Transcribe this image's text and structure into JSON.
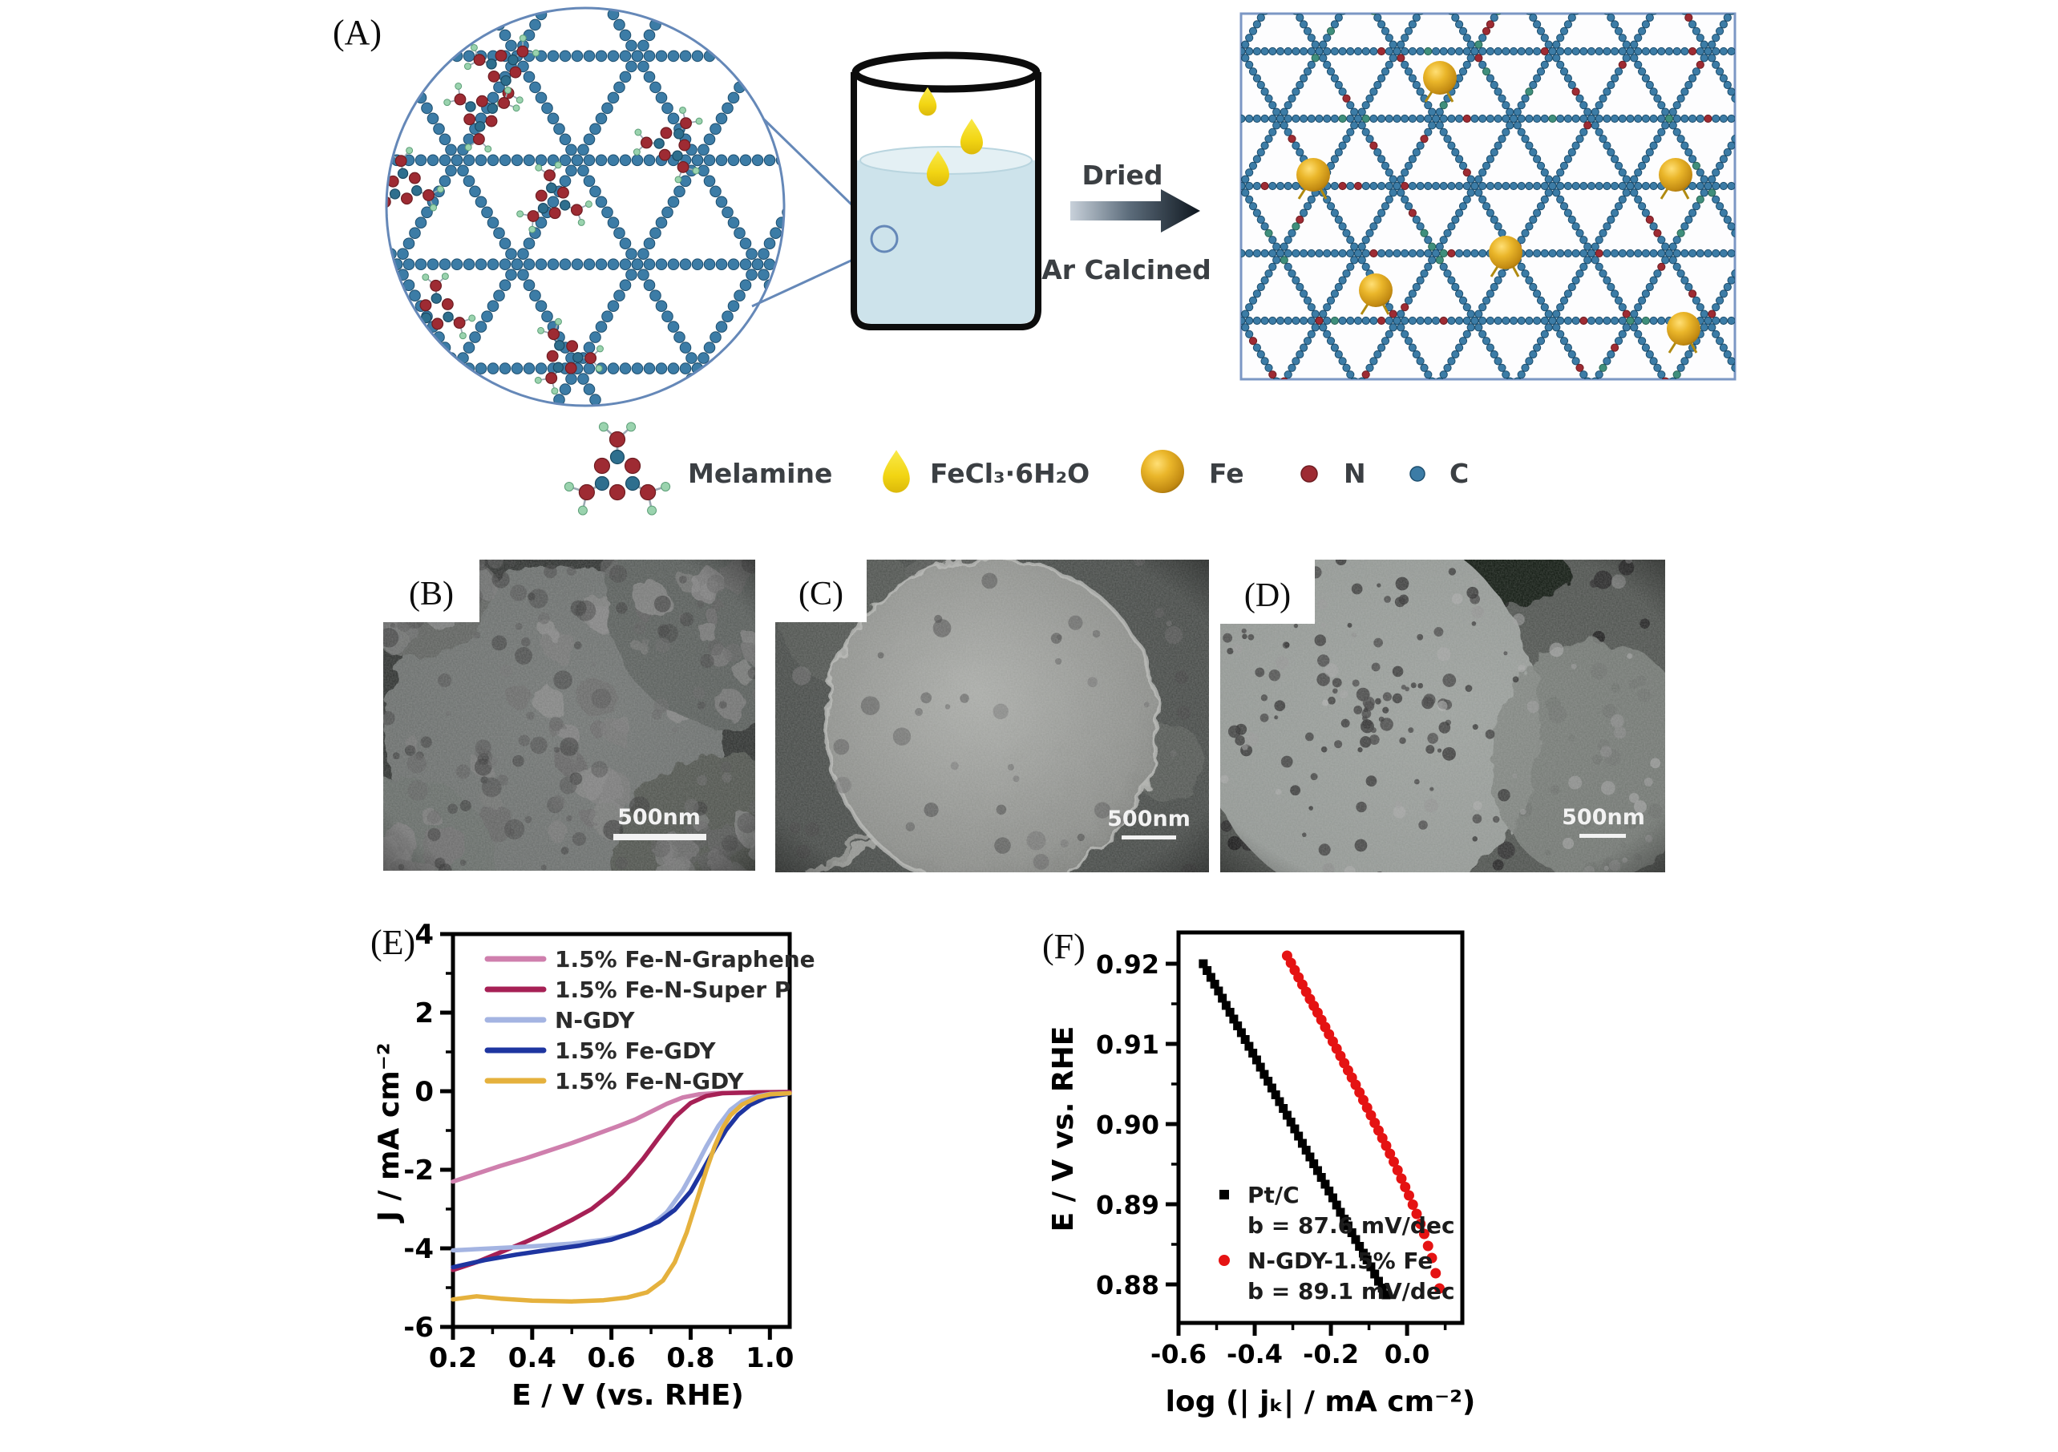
{
  "figure": {
    "panels": {
      "a": {
        "label": "(A)",
        "process": {
          "dried": "Dried",
          "ar_calcined": "Ar Calcined"
        },
        "legend": {
          "melamine": "Melamine",
          "fecl3": "FeCl₃·6H₂O",
          "fe": "Fe",
          "n": "N",
          "c": "C"
        },
        "colors": {
          "carbon": "#3c7ca6",
          "nitrogen": "#9e2b33",
          "hydrogen": "#9ad3ae",
          "iron_sphere": "#e0a51e",
          "droplet": "#f2d513",
          "liquid": "#cde3eb",
          "outline": "#6a8fbf"
        }
      },
      "b": {
        "label": "(B)",
        "scalebar": "500nm"
      },
      "c": {
        "label": "(C)",
        "scalebar": "500nm"
      },
      "d": {
        "label": "(D)",
        "scalebar": "500nm"
      },
      "e": {
        "label": "(E)"
      },
      "f": {
        "label": "(F)"
      }
    }
  },
  "chart_data": [
    {
      "id": "E",
      "type": "line",
      "xlabel": "E / V (vs. RHE)",
      "ylabel": "J / mA cm⁻²",
      "xlim": [
        0.2,
        1.05
      ],
      "ylim": [
        -6,
        4
      ],
      "xtick_vals": [
        0.2,
        0.4,
        0.6,
        0.8,
        1.0
      ],
      "xtick_labels": [
        "0.2",
        "0.4",
        "0.6",
        "0.8",
        "1.0"
      ],
      "xminor_vals": [
        0.3,
        0.5,
        0.7,
        0.9
      ],
      "ytick_vals": [
        4,
        2,
        0,
        -2,
        -4,
        -6
      ],
      "ytick_labels": [
        "4",
        "2",
        "0",
        "-2",
        "-4",
        "-6"
      ],
      "yminor_vals": [
        3,
        1,
        -1,
        -3,
        -5
      ],
      "legend_position": "top-left",
      "grid": false,
      "series": [
        {
          "name": "1.5% Fe-N-Graphene",
          "color": "#cf7fad",
          "points": [
            [
              0.2,
              -2.3
            ],
            [
              0.26,
              -2.1
            ],
            [
              0.32,
              -1.9
            ],
            [
              0.38,
              -1.72
            ],
            [
              0.44,
              -1.52
            ],
            [
              0.5,
              -1.32
            ],
            [
              0.56,
              -1.1
            ],
            [
              0.62,
              -0.88
            ],
            [
              0.66,
              -0.72
            ],
            [
              0.7,
              -0.52
            ],
            [
              0.74,
              -0.32
            ],
            [
              0.78,
              -0.16
            ],
            [
              0.82,
              -0.08
            ],
            [
              0.86,
              -0.05
            ],
            [
              0.92,
              -0.04
            ],
            [
              1.0,
              -0.03
            ],
            [
              1.05,
              -0.03
            ]
          ]
        },
        {
          "name": "1.5% Fe-N-Super P",
          "color": "#a62055",
          "points": [
            [
              0.2,
              -4.55
            ],
            [
              0.26,
              -4.35
            ],
            [
              0.32,
              -4.1
            ],
            [
              0.38,
              -3.85
            ],
            [
              0.44,
              -3.58
            ],
            [
              0.5,
              -3.28
            ],
            [
              0.55,
              -3.0
            ],
            [
              0.6,
              -2.6
            ],
            [
              0.64,
              -2.2
            ],
            [
              0.68,
              -1.72
            ],
            [
              0.72,
              -1.18
            ],
            [
              0.76,
              -0.66
            ],
            [
              0.8,
              -0.3
            ],
            [
              0.84,
              -0.12
            ],
            [
              0.88,
              -0.05
            ],
            [
              0.95,
              -0.03
            ],
            [
              1.05,
              -0.02
            ]
          ]
        },
        {
          "name": "N-GDY",
          "color": "#a4b4e2",
          "points": [
            [
              0.2,
              -4.05
            ],
            [
              0.3,
              -4.0
            ],
            [
              0.4,
              -3.95
            ],
            [
              0.5,
              -3.88
            ],
            [
              0.58,
              -3.78
            ],
            [
              0.64,
              -3.65
            ],
            [
              0.7,
              -3.42
            ],
            [
              0.74,
              -3.08
            ],
            [
              0.78,
              -2.52
            ],
            [
              0.81,
              -1.98
            ],
            [
              0.84,
              -1.4
            ],
            [
              0.87,
              -0.88
            ],
            [
              0.9,
              -0.48
            ],
            [
              0.93,
              -0.25
            ],
            [
              0.97,
              -0.12
            ],
            [
              1.0,
              -0.07
            ],
            [
              1.05,
              -0.05
            ]
          ]
        },
        {
          "name": "1.5% Fe-GDY",
          "color": "#1e35a0",
          "points": [
            [
              0.2,
              -4.48
            ],
            [
              0.28,
              -4.3
            ],
            [
              0.36,
              -4.16
            ],
            [
              0.44,
              -4.04
            ],
            [
              0.52,
              -3.93
            ],
            [
              0.6,
              -3.78
            ],
            [
              0.66,
              -3.58
            ],
            [
              0.72,
              -3.32
            ],
            [
              0.76,
              -3.02
            ],
            [
              0.8,
              -2.55
            ],
            [
              0.83,
              -2.02
            ],
            [
              0.86,
              -1.48
            ],
            [
              0.89,
              -0.98
            ],
            [
              0.92,
              -0.6
            ],
            [
              0.95,
              -0.35
            ],
            [
              0.99,
              -0.16
            ],
            [
              1.05,
              -0.06
            ]
          ]
        },
        {
          "name": "1.5% Fe-N-GDY",
          "color": "#e5b13d",
          "points": [
            [
              0.2,
              -5.3
            ],
            [
              0.26,
              -5.22
            ],
            [
              0.32,
              -5.28
            ],
            [
              0.4,
              -5.33
            ],
            [
              0.5,
              -5.35
            ],
            [
              0.58,
              -5.32
            ],
            [
              0.64,
              -5.25
            ],
            [
              0.69,
              -5.12
            ],
            [
              0.73,
              -4.82
            ],
            [
              0.76,
              -4.35
            ],
            [
              0.79,
              -3.6
            ],
            [
              0.815,
              -2.8
            ],
            [
              0.84,
              -2.0
            ],
            [
              0.86,
              -1.42
            ],
            [
              0.88,
              -0.95
            ],
            [
              0.9,
              -0.62
            ],
            [
              0.93,
              -0.34
            ],
            [
              0.97,
              -0.15
            ],
            [
              1.0,
              -0.08
            ],
            [
              1.05,
              -0.05
            ]
          ]
        }
      ]
    },
    {
      "id": "F",
      "type": "scatter",
      "xlabel": "log (| jₖ| / mA cm⁻²)",
      "ylabel": "E / V vs. RHE",
      "xlim": [
        -0.6,
        0.145
      ],
      "ylim": [
        0.8752,
        0.9239
      ],
      "xtick_vals": [
        -0.6,
        -0.4,
        -0.2,
        0.0
      ],
      "xtick_labels": [
        "-0.6",
        "-0.4",
        "-0.2",
        "0.0"
      ],
      "xminor_vals": [
        -0.5,
        -0.3,
        -0.1,
        0.1
      ],
      "ytick_vals": [
        0.92,
        0.91,
        0.9,
        0.89,
        0.88
      ],
      "ytick_labels": [
        "0.92",
        "0.91",
        "0.90",
        "0.89",
        "0.88"
      ],
      "yminor_vals": [
        0.915,
        0.905,
        0.895,
        0.885
      ],
      "legend_position": "bottom-left",
      "grid": false,
      "series": [
        {
          "name": "Pt/C",
          "b_label": "b = 87.6 mV/dec",
          "marker": "square",
          "color": "#000000",
          "points": [
            [
              -0.535,
              0.92
            ],
            [
              -0.515,
              0.9183
            ],
            [
              -0.495,
              0.9166
            ],
            [
              -0.475,
              0.9148
            ],
            [
              -0.455,
              0.9131
            ],
            [
              -0.435,
              0.9114
            ],
            [
              -0.415,
              0.9097
            ],
            [
              -0.395,
              0.908
            ],
            [
              -0.375,
              0.9062
            ],
            [
              -0.355,
              0.9045
            ],
            [
              -0.335,
              0.9028
            ],
            [
              -0.315,
              0.9011
            ],
            [
              -0.295,
              0.8994
            ],
            [
              -0.275,
              0.8976
            ],
            [
              -0.255,
              0.8959
            ],
            [
              -0.235,
              0.8942
            ],
            [
              -0.215,
              0.8925
            ],
            [
              -0.195,
              0.8908
            ],
            [
              -0.175,
              0.889
            ],
            [
              -0.155,
              0.8873
            ],
            [
              -0.135,
              0.8856
            ],
            [
              -0.115,
              0.8839
            ],
            [
              -0.095,
              0.8822
            ],
            [
              -0.075,
              0.8804
            ],
            [
              -0.055,
              0.8787
            ]
          ]
        },
        {
          "name": "N-GDY-1.5% Fe",
          "b_label": "b = 89.1 mV/dec",
          "marker": "circle",
          "color": "#e51313",
          "points": [
            [
              -0.315,
              0.921
            ],
            [
              -0.295,
              0.9192
            ],
            [
              -0.275,
              0.9174
            ],
            [
              -0.255,
              0.9156
            ],
            [
              -0.235,
              0.9139
            ],
            [
              -0.215,
              0.9121
            ],
            [
              -0.195,
              0.9103
            ],
            [
              -0.175,
              0.9085
            ],
            [
              -0.155,
              0.9067
            ],
            [
              -0.135,
              0.9049
            ],
            [
              -0.115,
              0.903
            ],
            [
              -0.095,
              0.9011
            ],
            [
              -0.075,
              0.8992
            ],
            [
              -0.055,
              0.8973
            ],
            [
              -0.035,
              0.8953
            ],
            [
              -0.015,
              0.8932
            ],
            [
              0.005,
              0.8911
            ],
            [
              0.025,
              0.8888
            ],
            [
              0.045,
              0.8863
            ],
            [
              0.065,
              0.8833
            ],
            [
              0.085,
              0.8795
            ]
          ]
        }
      ]
    }
  ]
}
